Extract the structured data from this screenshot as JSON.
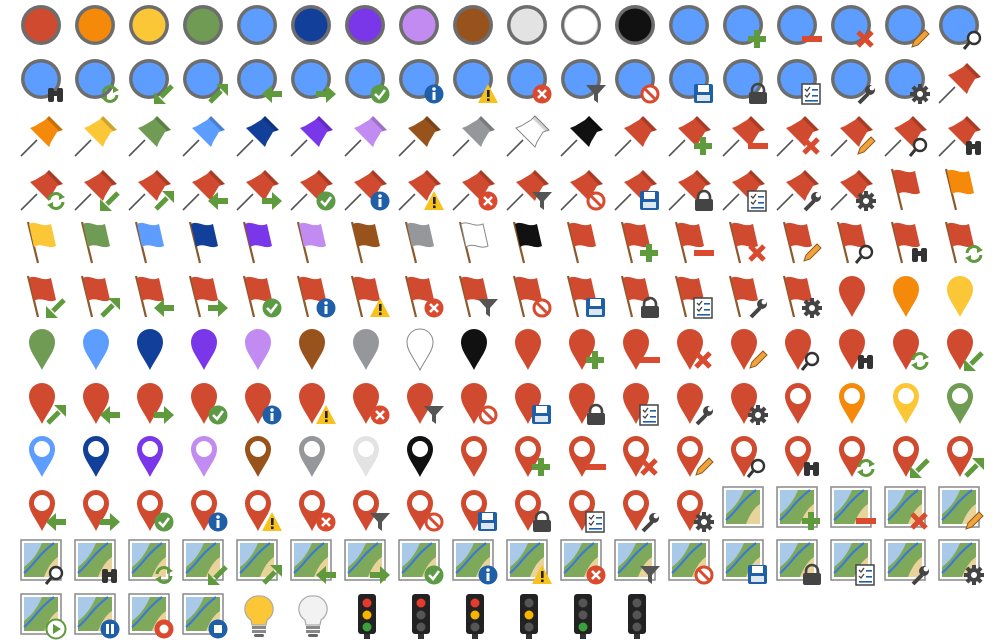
{
  "palette": {
    "red": "#cf4a2e",
    "orange": "#f5890a",
    "yellow": "#fcc736",
    "green": "#6f9b55",
    "lightblue": "#5c9dff",
    "darkblue": "#123f99",
    "purple": "#7a37ea",
    "lilac": "#c18bf1",
    "brown": "#98521b",
    "gray": "#95979b",
    "lightgray": "#e3e3e3",
    "white": "#ffffff",
    "black": "#111111"
  },
  "badges": [
    "add",
    "remove",
    "delete",
    "edit",
    "search",
    "binoculars",
    "refresh",
    "arrow-down-left",
    "arrow-up-right",
    "arrow-left",
    "arrow-right",
    "check",
    "info",
    "warning",
    "error",
    "filter",
    "block",
    "save",
    "lock",
    "checklist",
    "wrench",
    "gear"
  ],
  "media_badges": [
    "play",
    "pause",
    "record",
    "stop"
  ],
  "rows": [
    [
      {
        "t": "circle",
        "c": "red"
      },
      {
        "t": "circle",
        "c": "orange"
      },
      {
        "t": "circle",
        "c": "yellow"
      },
      {
        "t": "circle",
        "c": "green"
      },
      {
        "t": "circle",
        "c": "lightblue"
      },
      {
        "t": "circle",
        "c": "darkblue"
      },
      {
        "t": "circle",
        "c": "purple"
      },
      {
        "t": "circle",
        "c": "lilac"
      },
      {
        "t": "circle",
        "c": "brown"
      },
      {
        "t": "circle",
        "c": "lightgray"
      },
      {
        "t": "circle",
        "c": "white"
      },
      {
        "t": "circle",
        "c": "black"
      },
      {
        "t": "circle",
        "c": "lightblue"
      },
      {
        "t": "circle",
        "c": "lightblue",
        "b": "add"
      },
      {
        "t": "circle",
        "c": "lightblue",
        "b": "remove"
      },
      {
        "t": "circle",
        "c": "lightblue",
        "b": "delete"
      },
      {
        "t": "circle",
        "c": "lightblue",
        "b": "edit"
      },
      {
        "t": "circle",
        "c": "lightblue",
        "b": "search"
      }
    ],
    [
      {
        "t": "circle",
        "c": "lightblue",
        "b": "binoculars"
      },
      {
        "t": "circle",
        "c": "lightblue",
        "b": "refresh"
      },
      {
        "t": "circle",
        "c": "lightblue",
        "b": "arrow-down-left"
      },
      {
        "t": "circle",
        "c": "lightblue",
        "b": "arrow-up-right"
      },
      {
        "t": "circle",
        "c": "lightblue",
        "b": "arrow-left"
      },
      {
        "t": "circle",
        "c": "lightblue",
        "b": "arrow-right"
      },
      {
        "t": "circle",
        "c": "lightblue",
        "b": "check"
      },
      {
        "t": "circle",
        "c": "lightblue",
        "b": "info"
      },
      {
        "t": "circle",
        "c": "lightblue",
        "b": "warning"
      },
      {
        "t": "circle",
        "c": "lightblue",
        "b": "error"
      },
      {
        "t": "circle",
        "c": "lightblue",
        "b": "filter"
      },
      {
        "t": "circle",
        "c": "lightblue",
        "b": "block"
      },
      {
        "t": "circle",
        "c": "lightblue",
        "b": "save"
      },
      {
        "t": "circle",
        "c": "lightblue",
        "b": "lock"
      },
      {
        "t": "circle",
        "c": "lightblue",
        "b": "checklist"
      },
      {
        "t": "circle",
        "c": "lightblue",
        "b": "wrench"
      },
      {
        "t": "circle",
        "c": "lightblue",
        "b": "gear"
      },
      {
        "t": "pin",
        "c": "red"
      }
    ],
    [
      {
        "t": "pin",
        "c": "orange"
      },
      {
        "t": "pin",
        "c": "yellow"
      },
      {
        "t": "pin",
        "c": "green"
      },
      {
        "t": "pin",
        "c": "lightblue"
      },
      {
        "t": "pin",
        "c": "darkblue"
      },
      {
        "t": "pin",
        "c": "purple"
      },
      {
        "t": "pin",
        "c": "lilac"
      },
      {
        "t": "pin",
        "c": "brown"
      },
      {
        "t": "pin",
        "c": "gray"
      },
      {
        "t": "pin",
        "c": "white"
      },
      {
        "t": "pin",
        "c": "black"
      },
      {
        "t": "pin",
        "c": "red"
      },
      {
        "t": "pin",
        "c": "red",
        "b": "add"
      },
      {
        "t": "pin",
        "c": "red",
        "b": "remove"
      },
      {
        "t": "pin",
        "c": "red",
        "b": "delete"
      },
      {
        "t": "pin",
        "c": "red",
        "b": "edit"
      },
      {
        "t": "pin",
        "c": "red",
        "b": "search"
      },
      {
        "t": "pin",
        "c": "red",
        "b": "binoculars"
      }
    ],
    [
      {
        "t": "pin",
        "c": "red",
        "b": "refresh"
      },
      {
        "t": "pin",
        "c": "red",
        "b": "arrow-down-left"
      },
      {
        "t": "pin",
        "c": "red",
        "b": "arrow-up-right"
      },
      {
        "t": "pin",
        "c": "red",
        "b": "arrow-left"
      },
      {
        "t": "pin",
        "c": "red",
        "b": "arrow-right"
      },
      {
        "t": "pin",
        "c": "red",
        "b": "check"
      },
      {
        "t": "pin",
        "c": "red",
        "b": "info"
      },
      {
        "t": "pin",
        "c": "red",
        "b": "warning"
      },
      {
        "t": "pin",
        "c": "red",
        "b": "error"
      },
      {
        "t": "pin",
        "c": "red",
        "b": "filter"
      },
      {
        "t": "pin",
        "c": "red",
        "b": "block"
      },
      {
        "t": "pin",
        "c": "red",
        "b": "save"
      },
      {
        "t": "pin",
        "c": "red",
        "b": "lock"
      },
      {
        "t": "pin",
        "c": "red",
        "b": "checklist"
      },
      {
        "t": "pin",
        "c": "red",
        "b": "wrench"
      },
      {
        "t": "pin",
        "c": "red",
        "b": "gear"
      },
      {
        "t": "flag",
        "c": "red"
      },
      {
        "t": "flag",
        "c": "orange"
      }
    ],
    [
      {
        "t": "flag",
        "c": "yellow"
      },
      {
        "t": "flag",
        "c": "green"
      },
      {
        "t": "flag",
        "c": "lightblue"
      },
      {
        "t": "flag",
        "c": "darkblue"
      },
      {
        "t": "flag",
        "c": "purple"
      },
      {
        "t": "flag",
        "c": "lilac"
      },
      {
        "t": "flag",
        "c": "brown"
      },
      {
        "t": "flag",
        "c": "gray"
      },
      {
        "t": "flag",
        "c": "white"
      },
      {
        "t": "flag",
        "c": "black"
      },
      {
        "t": "flag",
        "c": "red"
      },
      {
        "t": "flag",
        "c": "red",
        "b": "add"
      },
      {
        "t": "flag",
        "c": "red",
        "b": "remove"
      },
      {
        "t": "flag",
        "c": "red",
        "b": "delete"
      },
      {
        "t": "flag",
        "c": "red",
        "b": "edit"
      },
      {
        "t": "flag",
        "c": "red",
        "b": "search"
      },
      {
        "t": "flag",
        "c": "red",
        "b": "binoculars"
      },
      {
        "t": "flag",
        "c": "red",
        "b": "refresh"
      }
    ],
    [
      {
        "t": "flag",
        "c": "red",
        "b": "arrow-down-left"
      },
      {
        "t": "flag",
        "c": "red",
        "b": "arrow-up-right"
      },
      {
        "t": "flag",
        "c": "red",
        "b": "arrow-left"
      },
      {
        "t": "flag",
        "c": "red",
        "b": "arrow-right"
      },
      {
        "t": "flag",
        "c": "red",
        "b": "check"
      },
      {
        "t": "flag",
        "c": "red",
        "b": "info"
      },
      {
        "t": "flag",
        "c": "red",
        "b": "warning"
      },
      {
        "t": "flag",
        "c": "red",
        "b": "error"
      },
      {
        "t": "flag",
        "c": "red",
        "b": "filter"
      },
      {
        "t": "flag",
        "c": "red",
        "b": "block"
      },
      {
        "t": "flag",
        "c": "red",
        "b": "save"
      },
      {
        "t": "flag",
        "c": "red",
        "b": "lock"
      },
      {
        "t": "flag",
        "c": "red",
        "b": "checklist"
      },
      {
        "t": "flag",
        "c": "red",
        "b": "wrench"
      },
      {
        "t": "flag",
        "c": "red",
        "b": "gear"
      },
      {
        "t": "marker",
        "c": "red"
      },
      {
        "t": "marker",
        "c": "orange"
      },
      {
        "t": "marker",
        "c": "yellow"
      }
    ],
    [
      {
        "t": "marker",
        "c": "green"
      },
      {
        "t": "marker",
        "c": "lightblue"
      },
      {
        "t": "marker",
        "c": "darkblue"
      },
      {
        "t": "marker",
        "c": "purple"
      },
      {
        "t": "marker",
        "c": "lilac"
      },
      {
        "t": "marker",
        "c": "brown"
      },
      {
        "t": "marker",
        "c": "gray"
      },
      {
        "t": "marker",
        "c": "white"
      },
      {
        "t": "marker",
        "c": "black"
      },
      {
        "t": "marker",
        "c": "red"
      },
      {
        "t": "marker",
        "c": "red",
        "b": "add"
      },
      {
        "t": "marker",
        "c": "red",
        "b": "remove"
      },
      {
        "t": "marker",
        "c": "red",
        "b": "delete"
      },
      {
        "t": "marker",
        "c": "red",
        "b": "edit"
      },
      {
        "t": "marker",
        "c": "red",
        "b": "search"
      },
      {
        "t": "marker",
        "c": "red",
        "b": "binoculars"
      },
      {
        "t": "marker",
        "c": "red",
        "b": "refresh"
      },
      {
        "t": "marker",
        "c": "red",
        "b": "arrow-down-left"
      }
    ],
    [
      {
        "t": "marker",
        "c": "red",
        "b": "arrow-up-right"
      },
      {
        "t": "marker",
        "c": "red",
        "b": "arrow-left"
      },
      {
        "t": "marker",
        "c": "red",
        "b": "arrow-right"
      },
      {
        "t": "marker",
        "c": "red",
        "b": "check"
      },
      {
        "t": "marker",
        "c": "red",
        "b": "info"
      },
      {
        "t": "marker",
        "c": "red",
        "b": "warning"
      },
      {
        "t": "marker",
        "c": "red",
        "b": "error"
      },
      {
        "t": "marker",
        "c": "red",
        "b": "filter"
      },
      {
        "t": "marker",
        "c": "red",
        "b": "block"
      },
      {
        "t": "marker",
        "c": "red",
        "b": "save"
      },
      {
        "t": "marker",
        "c": "red",
        "b": "lock"
      },
      {
        "t": "marker",
        "c": "red",
        "b": "checklist"
      },
      {
        "t": "marker",
        "c": "red",
        "b": "wrench"
      },
      {
        "t": "marker",
        "c": "red",
        "b": "gear"
      },
      {
        "t": "ringmarker",
        "c": "red"
      },
      {
        "t": "ringmarker",
        "c": "orange"
      },
      {
        "t": "ringmarker",
        "c": "yellow"
      },
      {
        "t": "ringmarker",
        "c": "green"
      }
    ],
    [
      {
        "t": "ringmarker",
        "c": "lightblue"
      },
      {
        "t": "ringmarker",
        "c": "darkblue"
      },
      {
        "t": "ringmarker",
        "c": "purple"
      },
      {
        "t": "ringmarker",
        "c": "lilac"
      },
      {
        "t": "ringmarker",
        "c": "brown"
      },
      {
        "t": "ringmarker",
        "c": "gray"
      },
      {
        "t": "ringmarker",
        "c": "lightgray"
      },
      {
        "t": "ringmarker",
        "c": "black"
      },
      {
        "t": "ringmarker",
        "c": "red"
      },
      {
        "t": "ringmarker",
        "c": "red",
        "b": "add"
      },
      {
        "t": "ringmarker",
        "c": "red",
        "b": "remove"
      },
      {
        "t": "ringmarker",
        "c": "red",
        "b": "delete"
      },
      {
        "t": "ringmarker",
        "c": "red",
        "b": "edit"
      },
      {
        "t": "ringmarker",
        "c": "red",
        "b": "search"
      },
      {
        "t": "ringmarker",
        "c": "red",
        "b": "binoculars"
      },
      {
        "t": "ringmarker",
        "c": "red",
        "b": "refresh"
      },
      {
        "t": "ringmarker",
        "c": "red",
        "b": "arrow-down-left"
      },
      {
        "t": "ringmarker",
        "c": "red",
        "b": "arrow-up-right"
      }
    ],
    [
      {
        "t": "ringmarker",
        "c": "red",
        "b": "arrow-left"
      },
      {
        "t": "ringmarker",
        "c": "red",
        "b": "arrow-right"
      },
      {
        "t": "ringmarker",
        "c": "red",
        "b": "check"
      },
      {
        "t": "ringmarker",
        "c": "red",
        "b": "info"
      },
      {
        "t": "ringmarker",
        "c": "red",
        "b": "warning"
      },
      {
        "t": "ringmarker",
        "c": "red",
        "b": "error"
      },
      {
        "t": "ringmarker",
        "c": "red",
        "b": "filter"
      },
      {
        "t": "ringmarker",
        "c": "red",
        "b": "block"
      },
      {
        "t": "ringmarker",
        "c": "red",
        "b": "save"
      },
      {
        "t": "ringmarker",
        "c": "red",
        "b": "lock"
      },
      {
        "t": "ringmarker",
        "c": "red",
        "b": "checklist"
      },
      {
        "t": "ringmarker",
        "c": "red",
        "b": "wrench"
      },
      {
        "t": "ringmarker",
        "c": "red",
        "b": "gear"
      },
      {
        "t": "map"
      },
      {
        "t": "map",
        "b": "add"
      },
      {
        "t": "map",
        "b": "remove"
      },
      {
        "t": "map",
        "b": "delete"
      },
      {
        "t": "map",
        "b": "edit"
      }
    ],
    [
      {
        "t": "map",
        "b": "search"
      },
      {
        "t": "map",
        "b": "binoculars"
      },
      {
        "t": "map",
        "b": "refresh"
      },
      {
        "t": "map",
        "b": "arrow-down-left"
      },
      {
        "t": "map",
        "b": "arrow-up-right"
      },
      {
        "t": "map",
        "b": "arrow-left"
      },
      {
        "t": "map",
        "b": "arrow-right"
      },
      {
        "t": "map",
        "b": "check"
      },
      {
        "t": "map",
        "b": "info"
      },
      {
        "t": "map",
        "b": "warning"
      },
      {
        "t": "map",
        "b": "error"
      },
      {
        "t": "map",
        "b": "filter"
      },
      {
        "t": "map",
        "b": "block"
      },
      {
        "t": "map",
        "b": "save"
      },
      {
        "t": "map",
        "b": "lock"
      },
      {
        "t": "map",
        "b": "checklist"
      },
      {
        "t": "map",
        "b": "wrench"
      },
      {
        "t": "map",
        "b": "gear"
      }
    ],
    [
      {
        "t": "map",
        "b": "play"
      },
      {
        "t": "map",
        "b": "pause"
      },
      {
        "t": "map",
        "b": "record"
      },
      {
        "t": "map",
        "b": "stop"
      },
      {
        "t": "bulb",
        "c": "yellow"
      },
      {
        "t": "bulb",
        "c": "white"
      },
      {
        "t": "traffic",
        "lit": [
          "red",
          "yellow",
          "green"
        ]
      },
      {
        "t": "traffic",
        "lit": [
          "red"
        ]
      },
      {
        "t": "traffic",
        "lit": [
          "red",
          "yellow"
        ]
      },
      {
        "t": "traffic",
        "lit": [
          "yellow"
        ]
      },
      {
        "t": "traffic",
        "lit": [
          "green"
        ]
      },
      {
        "t": "traffic",
        "lit": []
      }
    ]
  ]
}
